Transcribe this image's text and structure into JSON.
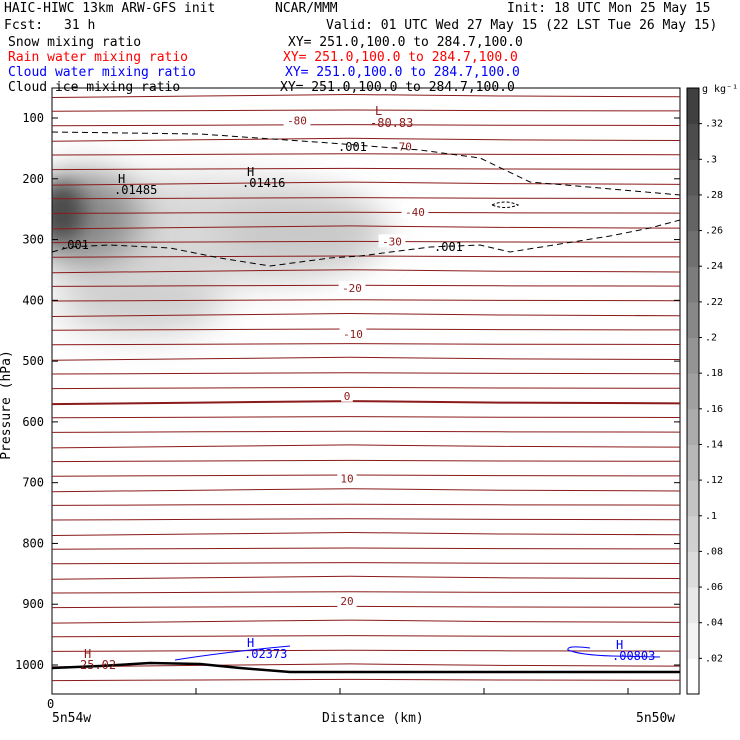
{
  "header": {
    "title_left": "HAIC-HIWC 13km ARW-GFS init",
    "org": "NCAR/MMM",
    "init": "Init: 18 UTC Mon 25 May 15",
    "fcst_label": "Fcst:",
    "fcst_value": "31 h",
    "valid": "Valid: 01 UTC Wed 27 May 15 (22 LST Tue 26 May 15)",
    "fields": [
      {
        "name": "Snow mixing ratio",
        "xy": "XY= 251.0,100.0 to 284.7,100.0",
        "color": "#000000"
      },
      {
        "name": "Rain water mixing ratio",
        "xy": "XY= 251.0,100.0 to 284.7,100.0",
        "color": "#ff0000"
      },
      {
        "name": "Cloud water mixing ratio",
        "xy": "XY= 251.0,100.0 to 284.7,100.0",
        "color": "#0000ff"
      },
      {
        "name": "Cloud ice mixing ratio",
        "xy": "XY= 251.0,100.0 to 284.7,100.0",
        "color": "#000000"
      }
    ]
  },
  "chart_data": {
    "type": "contour-cross-section",
    "xlabel": "Distance (km)",
    "ylabel": "Pressure (hPa)",
    "x_tick_labels": {
      "left": "0",
      "start": "5n54w",
      "end": "5n50w"
    },
    "y_ticks": [
      100,
      200,
      300,
      400,
      500,
      600,
      700,
      800,
      900,
      1000
    ],
    "ylim": [
      1050,
      50
    ],
    "colorbar": {
      "unit": "g kg⁻¹",
      "labels": [
        ".02",
        ".04",
        ".06",
        ".08",
        ".1",
        ".12",
        ".14",
        ".16",
        ".18",
        ".2",
        ".22",
        ".24",
        ".26",
        ".28",
        ".3",
        ".32"
      ],
      "range": [
        0,
        0.34
      ],
      "fill_colors": [
        "#ffffff",
        "#f3f3f3",
        "#e8e8e8",
        "#dcdcdc",
        "#d0d0d0",
        "#c4c4c4",
        "#b8b8b8",
        "#acacac",
        "#a0a0a0",
        "#949494",
        "#888888",
        "#7c7c7c",
        "#707070",
        "#646464",
        "#585858",
        "#4c4c4c",
        "#404040"
      ]
    },
    "isotherm_labels": [
      {
        "text": "-80",
        "p": 104
      },
      {
        "text": "-70",
        "p": 147
      },
      {
        "text": "-40",
        "p": 255
      },
      {
        "text": "-30",
        "p": 303
      },
      {
        "text": "-20",
        "p": 380
      },
      {
        "text": "-10",
        "p": 455
      },
      {
        "text": "0",
        "p": 557
      },
      {
        "text": "10",
        "p": 693
      },
      {
        "text": "20",
        "p": 895
      }
    ],
    "annotations": [
      {
        "text": "L",
        "value": "-80.83",
        "color": "#8b1a1a"
      },
      {
        "text": "H",
        "value": ".01485",
        "color": "#000000"
      },
      {
        "text": "H",
        "value": ".01416",
        "color": "#000000"
      },
      {
        "text": "H",
        "value": "25.02",
        "color": "#8b1a1a"
      },
      {
        "text": "H",
        "value": ".02373",
        "color": "#0000ff"
      },
      {
        "text": "H",
        "value": ".00803",
        "color": "#0000ff"
      }
    ],
    "cloud_contour_labels": [
      ".001",
      ".001",
      ".001"
    ]
  },
  "colors": {
    "isotherm": "#8b1a1a",
    "cloud_water": "#0000ff",
    "terrain": "#000000"
  }
}
